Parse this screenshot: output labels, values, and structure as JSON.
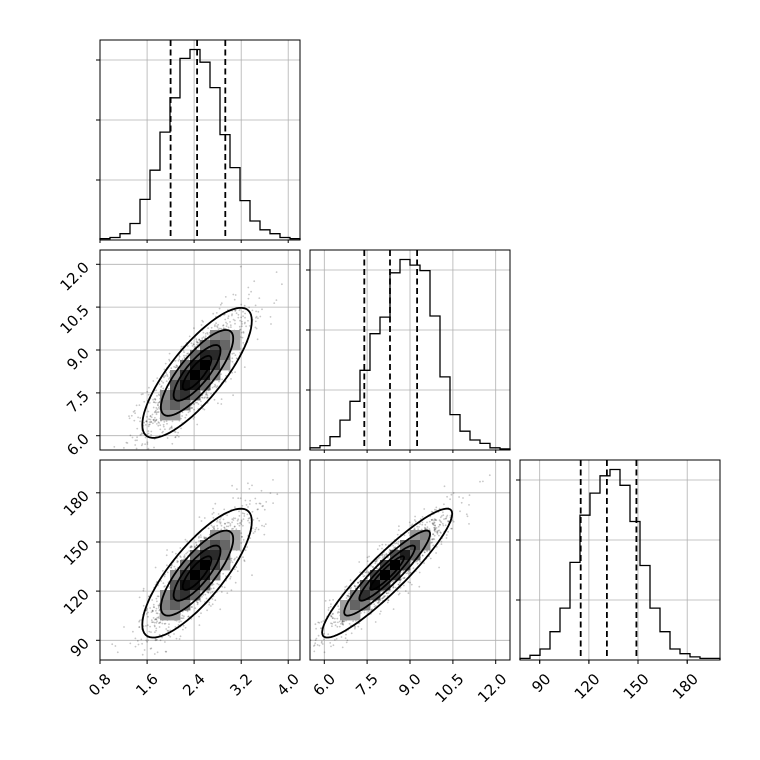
{
  "chart_data": {
    "type": "corner",
    "parameters": [
      {
        "range": [
          0.8,
          4.2
        ],
        "ticks": [
          0.8,
          1.6,
          2.4,
          3.2,
          4.0
        ],
        "tick_labels": [
          "0.8",
          "1.6",
          "2.4",
          "3.2",
          "4.0"
        ],
        "quantiles": [
          2.0,
          2.45,
          2.93
        ]
      },
      {
        "range": [
          5.5,
          12.5
        ],
        "ticks": [
          6.0,
          7.5,
          9.0,
          10.5,
          12.0
        ],
        "tick_labels": [
          "6.0",
          "7.5",
          "9.0",
          "10.5",
          "12.0"
        ],
        "quantiles": [
          7.4,
          8.3,
          9.25
        ]
      },
      {
        "range": [
          78,
          200
        ],
        "ticks": [
          90,
          120,
          150,
          180
        ],
        "tick_labels": [
          "90",
          "120",
          "150",
          "180"
        ],
        "quantiles": [
          115,
          131,
          149
        ]
      }
    ],
    "histograms": [
      {
        "bins": [
          0.8,
          0.97,
          1.14,
          1.31,
          1.48,
          1.65,
          1.82,
          1.99,
          2.16,
          2.33,
          2.5,
          2.67,
          2.84,
          3.01,
          3.18,
          3.35,
          3.52,
          3.69,
          3.86,
          4.03,
          4.2
        ],
        "counts": [
          1,
          2,
          5,
          13,
          32,
          55,
          85,
          112,
          143,
          150,
          140,
          120,
          83,
          57,
          31,
          15,
          8,
          5,
          2,
          1
        ]
      },
      {
        "bins": [
          5.5,
          5.85,
          6.2,
          6.55,
          6.9,
          7.25,
          7.6,
          7.95,
          8.3,
          8.65,
          9.0,
          9.35,
          9.7,
          10.05,
          10.4,
          10.75,
          11.1,
          11.45,
          11.8,
          12.15,
          12.5
        ],
        "counts": [
          2,
          4,
          12,
          27,
          44,
          72,
          105,
          120,
          160,
          172,
          167,
          162,
          121,
          66,
          32,
          17,
          9,
          6,
          2,
          1
        ]
      },
      {
        "bins": [
          78,
          84.1,
          90.2,
          96.3,
          102.4,
          108.5,
          114.6,
          120.7,
          126.8,
          132.9,
          139,
          145.1,
          151.2,
          157.3,
          163.4,
          169.5,
          175.6,
          181.7,
          187.8,
          193.9,
          200
        ],
        "counts": [
          1,
          3,
          7,
          18,
          33,
          62,
          92,
          106,
          117,
          121,
          111,
          88,
          60,
          33,
          18,
          7,
          4,
          2,
          1,
          1
        ]
      }
    ],
    "pairs": [
      {
        "x_param": 0,
        "y_param": 1,
        "center": [
          2.45,
          8.2
        ],
        "sigma": [
          0.45,
          1.1
        ],
        "rho": 0.8
      },
      {
        "x_param": 0,
        "y_param": 2,
        "center": [
          2.45,
          131
        ],
        "sigma": [
          0.45,
          19
        ],
        "rho": 0.8
      },
      {
        "x_param": 1,
        "y_param": 2,
        "center": [
          8.2,
          131
        ],
        "sigma": [
          1.1,
          19
        ],
        "rho": 0.92
      }
    ],
    "grid": true
  }
}
